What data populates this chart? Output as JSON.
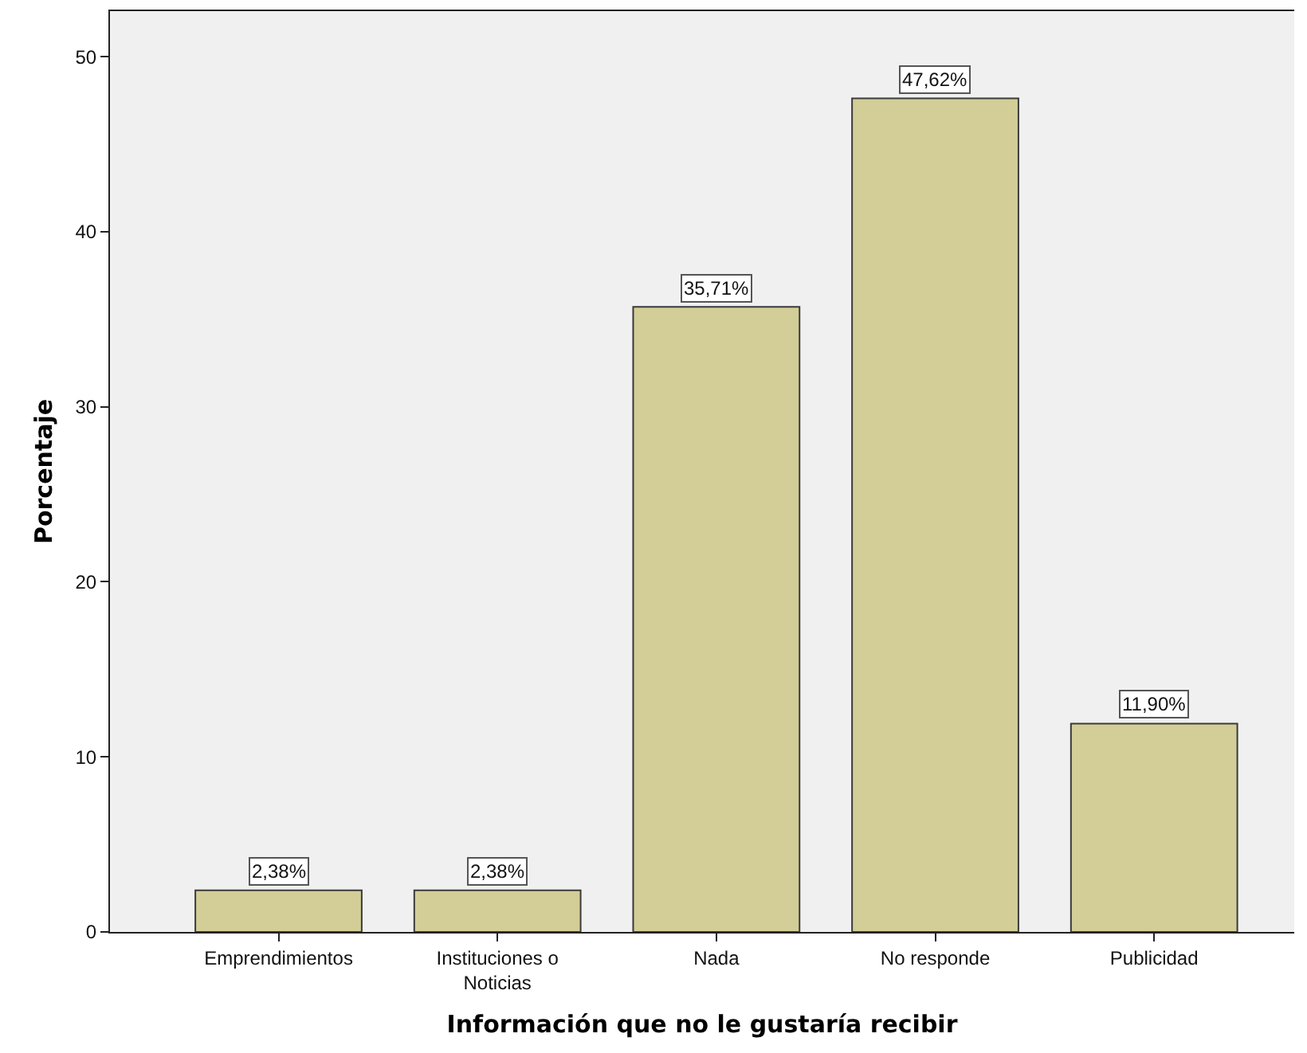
{
  "chart_data": {
    "type": "bar",
    "xlabel": "Información que no le gustaría recibir",
    "ylabel": "Porcentaje",
    "categories": [
      "Emprendimientos",
      "Instituciones o Noticias",
      "Nada",
      "No responde",
      "Publicidad"
    ],
    "values": [
      2.38,
      2.38,
      35.71,
      47.62,
      11.9
    ],
    "value_labels": [
      "2,38%",
      "2,38%",
      "35,71%",
      "47,62%",
      "11,90%"
    ],
    "color": "#d3ce97",
    "ylim": [
      0,
      52.6
    ],
    "yticks": [
      0,
      10,
      20,
      30,
      40,
      50
    ]
  }
}
